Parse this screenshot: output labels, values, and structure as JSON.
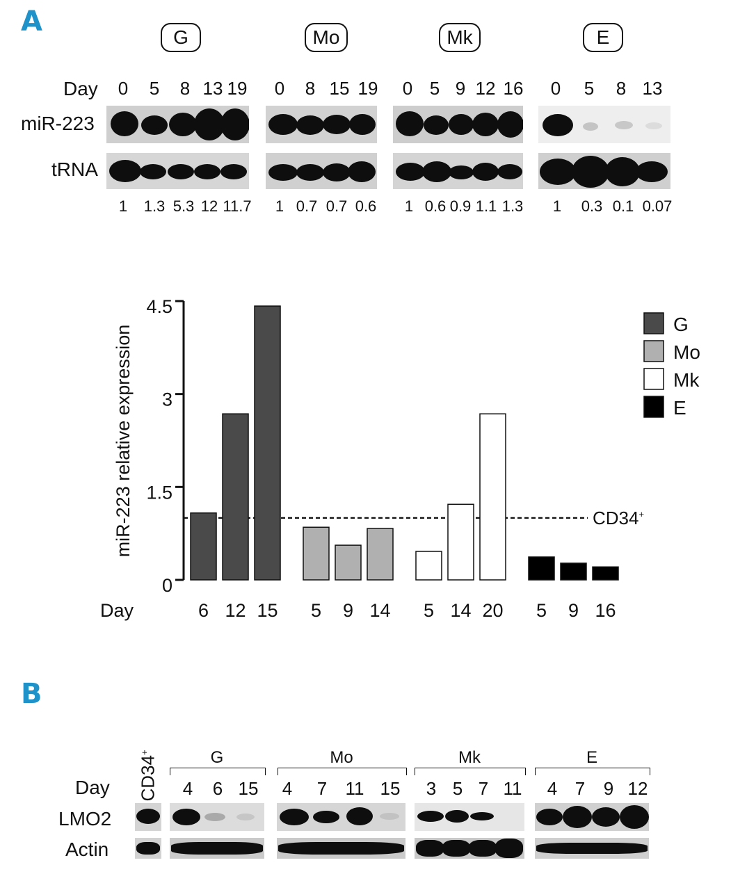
{
  "panel_a_label": "A",
  "panel_b_label": "B",
  "blot_a": {
    "day_label": "Day",
    "row1_label": "miR-223",
    "row2_label": "tRNA",
    "groups": [
      {
        "name": "G",
        "days": [
          "0",
          "5",
          "8",
          "13",
          "19"
        ],
        "ratios": [
          "1",
          "1.3",
          "5.3",
          "12",
          "11.7"
        ]
      },
      {
        "name": "Mo",
        "days": [
          "0",
          "8",
          "15",
          "19"
        ],
        "ratios": [
          "1",
          "0.7",
          "0.7",
          "0.6"
        ]
      },
      {
        "name": "Mk",
        "days": [
          "0",
          "5",
          "9",
          "12",
          "16"
        ],
        "ratios": [
          "1",
          "0.6",
          "0.9",
          "1.1",
          "1.3"
        ]
      },
      {
        "name": "E",
        "days": [
          "0",
          "5",
          "8",
          "13"
        ],
        "ratios": [
          "1",
          "0.3",
          "0.1",
          "0.07"
        ]
      }
    ]
  },
  "chart_data": {
    "type": "bar",
    "ylabel": "miR-223 relative expression",
    "xlabel": "Day",
    "ylim": [
      0,
      4.5
    ],
    "yticks": [
      "0",
      "1.5",
      "3",
      "4.5"
    ],
    "reference_line": {
      "value": 1.0,
      "label": "CD34",
      "label_sup": "+"
    },
    "legend_position": "top-right",
    "series": [
      {
        "name": "G",
        "color": "#4a4a4a",
        "categories": [
          "6",
          "12",
          "15"
        ],
        "values": [
          1.08,
          2.68,
          4.42
        ]
      },
      {
        "name": "Mo",
        "color": "#b0b0b0",
        "categories": [
          "5",
          "9",
          "14"
        ],
        "values": [
          0.85,
          0.56,
          0.83
        ]
      },
      {
        "name": "Mk",
        "color": "#ffffff",
        "categories": [
          "5",
          "14",
          "20"
        ],
        "values": [
          0.46,
          1.22,
          2.68
        ]
      },
      {
        "name": "E",
        "color": "#000000",
        "categories": [
          "5",
          "9",
          "16"
        ],
        "values": [
          0.37,
          0.27,
          0.21
        ]
      }
    ]
  },
  "blot_b": {
    "day_label": "Day",
    "control_label": "CD34",
    "control_sup": "+",
    "row1_label": "LMO2",
    "row2_label": "Actin",
    "groups": [
      {
        "name": "G",
        "days": [
          "4",
          "6",
          "15"
        ]
      },
      {
        "name": "Mo",
        "days": [
          "4",
          "7",
          "11",
          "15"
        ]
      },
      {
        "name": "Mk",
        "days": [
          "3",
          "5",
          "7",
          "11"
        ]
      },
      {
        "name": "E",
        "days": [
          "4",
          "7",
          "9",
          "12"
        ]
      }
    ]
  }
}
